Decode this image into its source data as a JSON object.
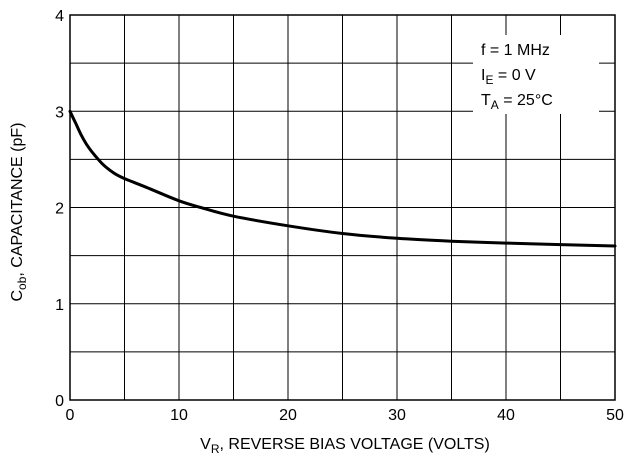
{
  "chart_data": {
    "type": "line",
    "xlabel": {
      "main": "V",
      "sub": "R",
      "rest": ", REVERSE BIAS VOLTAGE (VOLTS)"
    },
    "ylabel": {
      "main": "C",
      "sub": "ob",
      "rest": ", CAPACITANCE (pF)"
    },
    "xlim": [
      0,
      50
    ],
    "ylim": [
      0,
      4
    ],
    "x_ticks": [
      0,
      10,
      20,
      30,
      40,
      50
    ],
    "y_ticks": [
      0,
      1,
      2,
      3,
      4
    ],
    "grid": true,
    "grid_x_step": 5,
    "grid_y_step": 0.5,
    "line_color": "#000000",
    "annotations": [
      {
        "main": "f = 1 MHz",
        "sub": "",
        "rest": ""
      },
      {
        "main": "I",
        "sub": "E",
        "rest": " = 0 V"
      },
      {
        "main": "T",
        "sub": "A",
        "rest": " = 25°C"
      }
    ],
    "series": [
      {
        "x": [
          0,
          0.5,
          1,
          1.5,
          2,
          3,
          4,
          5,
          7,
          10,
          12,
          15,
          20,
          25,
          30,
          35,
          40,
          45,
          50
        ],
        "y": [
          3.0,
          2.88,
          2.76,
          2.66,
          2.58,
          2.45,
          2.36,
          2.3,
          2.21,
          2.07,
          2.0,
          1.91,
          1.81,
          1.73,
          1.68,
          1.65,
          1.63,
          1.615,
          1.6
        ]
      }
    ]
  }
}
